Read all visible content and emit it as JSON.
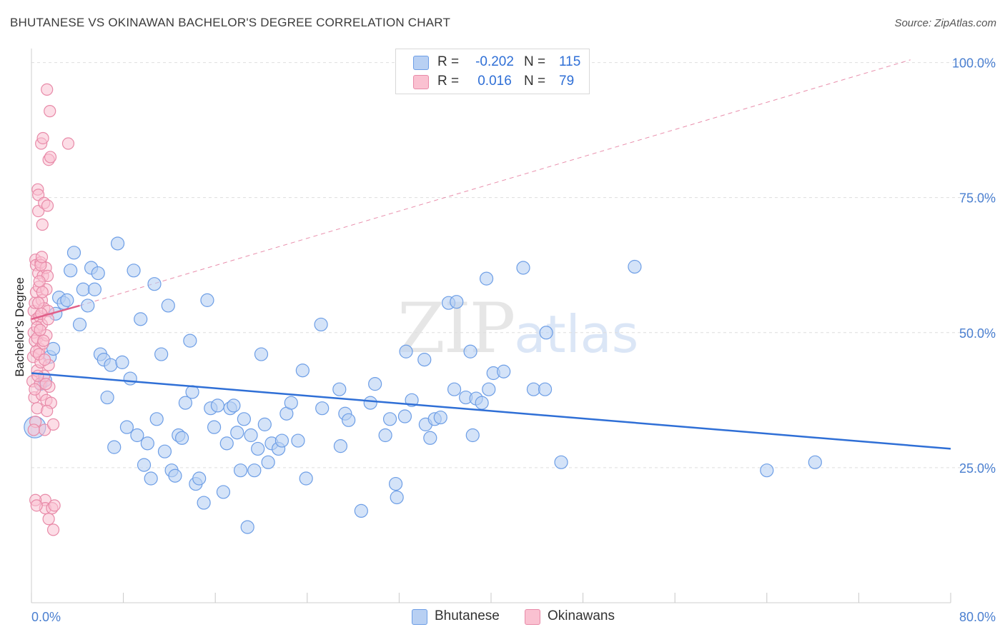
{
  "title": "BHUTANESE VS OKINAWAN BACHELOR'S DEGREE CORRELATION CHART",
  "source": "Source: ZipAtlas.com",
  "watermark": {
    "zip": "ZIP",
    "atlas": "atlas"
  },
  "legend_top": [
    {
      "label": "R =",
      "r": "-0.202",
      "n_label": "N =",
      "n": "115",
      "fill": "#b8d0f3",
      "stroke": "#6d9ee6"
    },
    {
      "label": "R =",
      "r": "0.016",
      "n_label": "N =",
      "n": "79",
      "fill": "#fac1d1",
      "stroke": "#e88aa8"
    }
  ],
  "legend_bottom": [
    {
      "label": "Bhutanese",
      "fill": "#b8d0f3",
      "stroke": "#6d9ee6"
    },
    {
      "label": "Okinawans",
      "fill": "#fac1d1",
      "stroke": "#e88aa8"
    }
  ],
  "chart_data": {
    "type": "scatter",
    "ylabel": "Bachelor's Degree",
    "xlim": [
      0,
      80
    ],
    "ylim": [
      0,
      101
    ],
    "x_tick_labels": [
      {
        "value": 0,
        "label": "0.0%"
      },
      {
        "value": 80,
        "label": "80.0%"
      }
    ],
    "y_tick_labels": [
      {
        "value": 25,
        "label": "25.0%"
      },
      {
        "value": 50,
        "label": "50.0%"
      },
      {
        "value": 75,
        "label": "75.0%"
      },
      {
        "value": 100,
        "label": "100.0%"
      }
    ],
    "grid": true,
    "colors": {
      "blue_fill": "#b8d0f3",
      "blue_stroke": "#6d9ee6",
      "blue_line": "#2f6fd6",
      "pink_fill": "#fac1d1",
      "pink_stroke": "#e88aa8",
      "pink_line": "#e0608a"
    },
    "series": [
      {
        "name": "Bhutanese",
        "points": [
          [
            0.3,
            32.5
          ],
          [
            0.8,
            40.5
          ],
          [
            1.2,
            41.2
          ],
          [
            1.6,
            45.5
          ],
          [
            1.9,
            47.0
          ],
          [
            2.1,
            53.5
          ],
          [
            2.4,
            56.5
          ],
          [
            2.8,
            55.5
          ],
          [
            3.1,
            56.0
          ],
          [
            3.4,
            61.5
          ],
          [
            3.7,
            64.8
          ],
          [
            4.2,
            51.5
          ],
          [
            4.5,
            58.0
          ],
          [
            4.9,
            55.0
          ],
          [
            5.2,
            62.0
          ],
          [
            5.5,
            58.0
          ],
          [
            5.8,
            61.0
          ],
          [
            6.0,
            46.0
          ],
          [
            6.3,
            45.0
          ],
          [
            6.6,
            38.0
          ],
          [
            6.9,
            44.0
          ],
          [
            7.2,
            28.8
          ],
          [
            7.5,
            66.5
          ],
          [
            7.9,
            44.5
          ],
          [
            8.3,
            32.5
          ],
          [
            8.6,
            41.5
          ],
          [
            8.9,
            61.5
          ],
          [
            9.2,
            31.0
          ],
          [
            9.5,
            52.5
          ],
          [
            9.8,
            25.5
          ],
          [
            10.1,
            29.5
          ],
          [
            10.4,
            23.0
          ],
          [
            10.7,
            59.0
          ],
          [
            10.9,
            34.0
          ],
          [
            11.3,
            46.0
          ],
          [
            11.6,
            28.0
          ],
          [
            11.9,
            55.0
          ],
          [
            12.2,
            24.5
          ],
          [
            12.5,
            23.5
          ],
          [
            12.8,
            31.0
          ],
          [
            13.1,
            30.5
          ],
          [
            13.4,
            37.0
          ],
          [
            13.8,
            48.5
          ],
          [
            14.0,
            39.0
          ],
          [
            14.3,
            22.0
          ],
          [
            14.6,
            23.0
          ],
          [
            15.0,
            18.5
          ],
          [
            15.3,
            56.0
          ],
          [
            15.6,
            36.0
          ],
          [
            15.9,
            32.5
          ],
          [
            16.2,
            36.5
          ],
          [
            16.7,
            20.5
          ],
          [
            17.0,
            29.5
          ],
          [
            17.3,
            36.0
          ],
          [
            17.6,
            36.5
          ],
          [
            17.9,
            31.5
          ],
          [
            18.2,
            24.5
          ],
          [
            18.5,
            34.0
          ],
          [
            18.8,
            14.0
          ],
          [
            19.1,
            31.0
          ],
          [
            19.4,
            24.5
          ],
          [
            19.7,
            28.5
          ],
          [
            20.0,
            46.0
          ],
          [
            20.3,
            33.0
          ],
          [
            20.6,
            26.0
          ],
          [
            20.9,
            29.5
          ],
          [
            21.5,
            28.5
          ],
          [
            21.8,
            30.0
          ],
          [
            22.2,
            35.0
          ],
          [
            22.6,
            37.0
          ],
          [
            23.2,
            30.0
          ],
          [
            23.6,
            43.0
          ],
          [
            23.9,
            23.0
          ],
          [
            25.2,
            51.5
          ],
          [
            25.3,
            36.0
          ],
          [
            26.8,
            39.5
          ],
          [
            26.9,
            29.0
          ],
          [
            27.3,
            35.0
          ],
          [
            27.6,
            33.8
          ],
          [
            28.7,
            17.0
          ],
          [
            29.5,
            37.0
          ],
          [
            29.9,
            40.5
          ],
          [
            30.8,
            31.0
          ],
          [
            31.2,
            34.0
          ],
          [
            31.7,
            22.0
          ],
          [
            31.8,
            19.5
          ],
          [
            32.5,
            34.5
          ],
          [
            32.6,
            46.5
          ],
          [
            33.1,
            37.5
          ],
          [
            34.2,
            45.0
          ],
          [
            34.3,
            33.0
          ],
          [
            34.7,
            30.5
          ],
          [
            35.1,
            34.0
          ],
          [
            35.6,
            34.3
          ],
          [
            36.3,
            55.5
          ],
          [
            36.8,
            39.5
          ],
          [
            37.0,
            55.7
          ],
          [
            37.8,
            38.0
          ],
          [
            38.2,
            46.5
          ],
          [
            38.4,
            31.0
          ],
          [
            38.7,
            37.8
          ],
          [
            39.2,
            37.0
          ],
          [
            39.6,
            60.0
          ],
          [
            39.8,
            39.5
          ],
          [
            40.2,
            42.5
          ],
          [
            41.1,
            42.8
          ],
          [
            42.8,
            62.0
          ],
          [
            43.7,
            39.5
          ],
          [
            44.7,
            39.5
          ],
          [
            44.8,
            50.0
          ],
          [
            46.1,
            26.0
          ],
          [
            52.5,
            62.2
          ],
          [
            64.0,
            24.5
          ],
          [
            68.2,
            26.0
          ]
        ],
        "trend": {
          "x": [
            0,
            80
          ],
          "y": [
            42.5,
            28.5
          ]
        }
      },
      {
        "name": "Okinawans",
        "points": [
          [
            0.1,
            41.0
          ],
          [
            0.15,
            45.5
          ],
          [
            0.2,
            54.0
          ],
          [
            0.2,
            50.0
          ],
          [
            0.25,
            38.0
          ],
          [
            0.3,
            48.5
          ],
          [
            0.3,
            55.5
          ],
          [
            0.35,
            63.5
          ],
          [
            0.35,
            33.5
          ],
          [
            0.4,
            62.5
          ],
          [
            0.4,
            57.5
          ],
          [
            0.45,
            52.5
          ],
          [
            0.5,
            49.0
          ],
          [
            0.5,
            43.0
          ],
          [
            0.5,
            36.0
          ],
          [
            0.55,
            76.5
          ],
          [
            0.6,
            75.5
          ],
          [
            0.6,
            72.5
          ],
          [
            0.6,
            61.0
          ],
          [
            0.65,
            58.5
          ],
          [
            0.7,
            53.0
          ],
          [
            0.7,
            47.0
          ],
          [
            0.75,
            40.5
          ],
          [
            0.8,
            63.0
          ],
          [
            0.8,
            44.5
          ],
          [
            0.85,
            85.0
          ],
          [
            0.9,
            56.0
          ],
          [
            0.9,
            51.5
          ],
          [
            0.9,
            38.5
          ],
          [
            0.95,
            70.0
          ],
          [
            1.0,
            86.0
          ],
          [
            1.0,
            60.5
          ],
          [
            1.0,
            48.0
          ],
          [
            1.1,
            74.0
          ],
          [
            1.1,
            54.5
          ],
          [
            1.1,
            42.0
          ],
          [
            1.15,
            32.0
          ],
          [
            1.2,
            19.0
          ],
          [
            1.2,
            17.5
          ],
          [
            1.25,
            62.0
          ],
          [
            1.3,
            58.0
          ],
          [
            1.3,
            49.5
          ],
          [
            1.3,
            37.5
          ],
          [
            1.35,
            95.0
          ],
          [
            1.4,
            73.5
          ],
          [
            1.4,
            60.5
          ],
          [
            1.45,
            54.0
          ],
          [
            1.5,
            82.0
          ],
          [
            1.5,
            44.0
          ],
          [
            1.5,
            15.5
          ],
          [
            1.55,
            40.0
          ],
          [
            1.6,
            91.0
          ],
          [
            1.65,
            82.5
          ],
          [
            1.7,
            37.0
          ],
          [
            1.8,
            17.5
          ],
          [
            1.9,
            33.0
          ],
          [
            1.9,
            13.5
          ],
          [
            2.0,
            18.0
          ],
          [
            3.2,
            85.0
          ],
          [
            0.2,
            32.0
          ],
          [
            0.3,
            39.5
          ],
          [
            0.4,
            46.5
          ],
          [
            0.5,
            51.0
          ],
          [
            0.6,
            55.5
          ],
          [
            0.7,
            59.5
          ],
          [
            0.8,
            62.5
          ],
          [
            0.9,
            64.0
          ],
          [
            0.35,
            19.0
          ],
          [
            0.45,
            18.0
          ],
          [
            0.55,
            42.0
          ],
          [
            0.65,
            46.0
          ],
          [
            0.75,
            50.5
          ],
          [
            0.85,
            53.5
          ],
          [
            0.95,
            57.5
          ],
          [
            1.05,
            48.5
          ],
          [
            1.15,
            45.0
          ],
          [
            1.25,
            40.5
          ],
          [
            1.35,
            35.5
          ],
          [
            1.45,
            52.5
          ]
        ],
        "trend_solid": {
          "x": [
            0,
            4.2
          ],
          "y": [
            52.5,
            55.0
          ]
        },
        "trend_dashed": {
          "x": [
            4.2,
            76.5
          ],
          "y": [
            55.0,
            100.5
          ]
        }
      }
    ]
  }
}
